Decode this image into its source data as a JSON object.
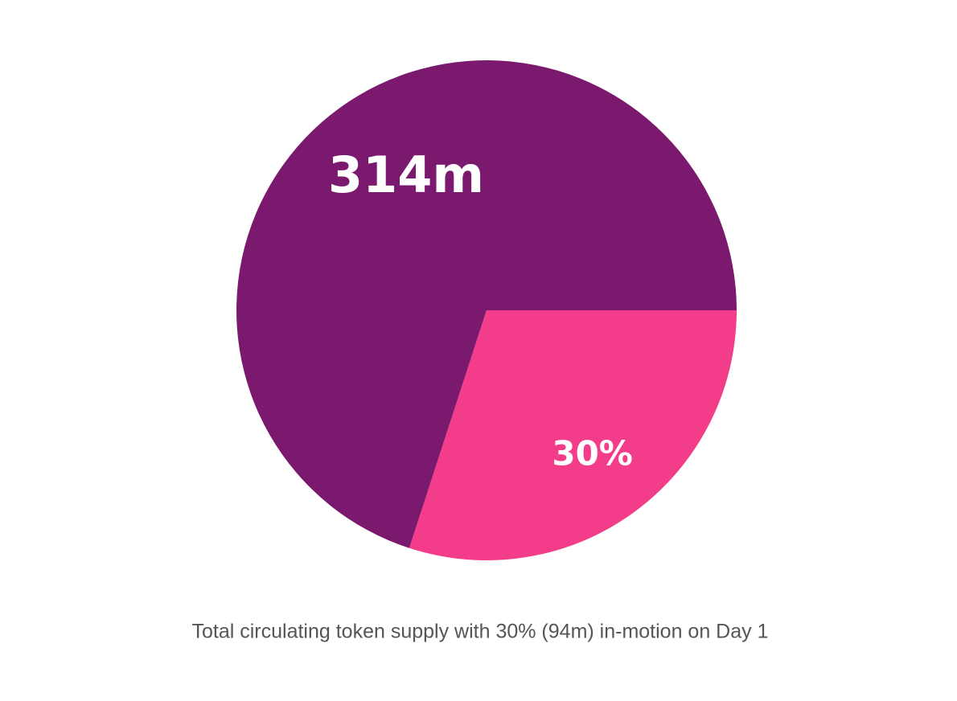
{
  "chart_data": {
    "type": "pie",
    "values": [
      30,
      70
    ],
    "value_labels": [
      "30%",
      null
    ],
    "colors": [
      "#f33d8a",
      "#7a196e"
    ],
    "annotation": "314m",
    "caption": "Total circulating token supply with 30% (94m) in-motion on Day 1"
  }
}
